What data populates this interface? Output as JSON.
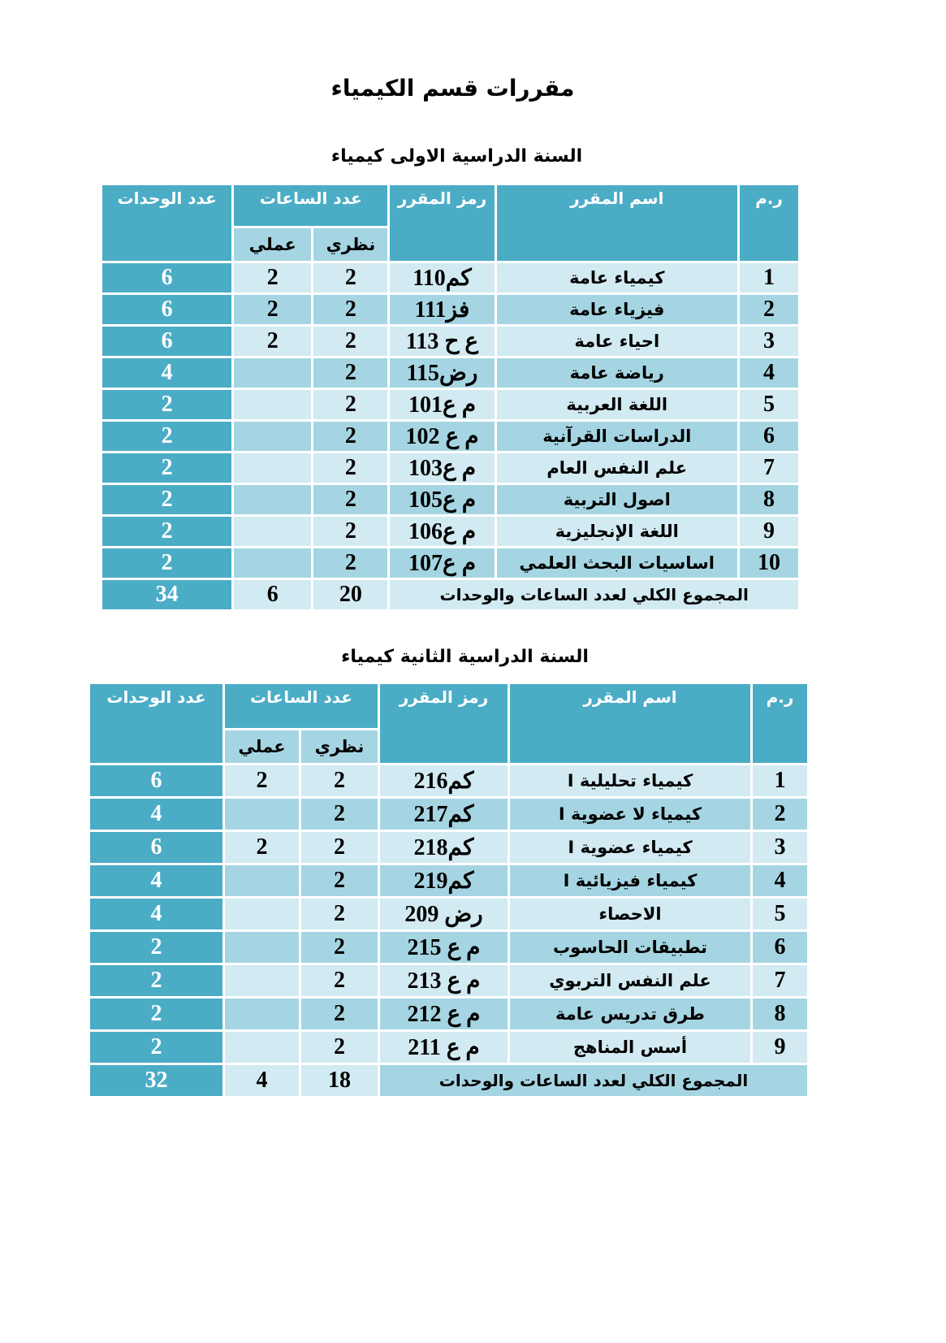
{
  "title": "مقررات قسم الكيمياء",
  "colors": {
    "header": "#4bacc6",
    "row_light": "#d2eaf1",
    "row_medium": "#a5d5e2"
  },
  "headers": {
    "num": "ر.م",
    "name": "اسم المقرر",
    "code_t1": "رمز المقرر",
    "code_t2": "رمز المقرر",
    "hours": "عدد الساعات",
    "theory": "نظري",
    "practical": "عملي",
    "units": "عدد الوحدات"
  },
  "tables": [
    {
      "title": "السنة الدراسية الاولى كيمياء",
      "rows": [
        [
          "1",
          "كيمياء عامة",
          "كم110",
          "2",
          "2",
          "6"
        ],
        [
          "2",
          "فيزياء عامة",
          "فز111",
          "2",
          "2",
          "6"
        ],
        [
          "3",
          "احياء عامة",
          "ع ح 113",
          "2",
          "2",
          "6"
        ],
        [
          "4",
          "رياضة عامة",
          "رض115",
          "2",
          "",
          "4"
        ],
        [
          "5",
          "اللغة العربية",
          "م ع101",
          "2",
          "",
          "2"
        ],
        [
          "6",
          "الدراسات القرآنية",
          "م ع 102",
          "2",
          "",
          "2"
        ],
        [
          "7",
          "علم النفس العام",
          "م ع103",
          "2",
          "",
          "2"
        ],
        [
          "8",
          "اصول التربية",
          "م ع105",
          "2",
          "",
          "2"
        ],
        [
          "9",
          "اللغة الإنجليزية",
          "م ع106",
          "2",
          "",
          "2"
        ],
        [
          "10",
          "اساسيات البحث العلمي",
          "م ع107",
          "2",
          "",
          "2"
        ]
      ],
      "total": {
        "label": "المجموع الكلي لعدد الساعات والوحدات",
        "theory": "20",
        "practical": "6",
        "units": "34"
      }
    },
    {
      "title": "السنة الدراسية الثانية كيمياء",
      "rows": [
        [
          "1",
          "كيمياء تحليلية I",
          "كم216",
          "2",
          "2",
          "6"
        ],
        [
          "2",
          "كيمياء لا عضوية I",
          "كم217",
          "2",
          "",
          "4"
        ],
        [
          "3",
          "كيمياء عضوية I",
          "كم218",
          "2",
          "2",
          "6"
        ],
        [
          "4",
          "كيمياء فيزيائية I",
          "كم219",
          "2",
          "",
          "4"
        ],
        [
          "5",
          "الاحصاء",
          "رض 209",
          "2",
          "",
          "4"
        ],
        [
          "6",
          "تطبيقات الحاسوب",
          "م ع 215",
          "2",
          "",
          "2"
        ],
        [
          "7",
          "علم النفس التربوي",
          "م ع 213",
          "2",
          "",
          "2"
        ],
        [
          "8",
          "طرق تدريس عامة",
          "م ع 212",
          "2",
          "",
          "2"
        ],
        [
          "9",
          "أسس المناهج",
          "م ع 211",
          "2",
          "",
          "2"
        ]
      ],
      "total": {
        "label": "المجموع الكلي لعدد الساعات والوحدات",
        "theory": "18",
        "practical": "4",
        "units": "32"
      }
    }
  ]
}
